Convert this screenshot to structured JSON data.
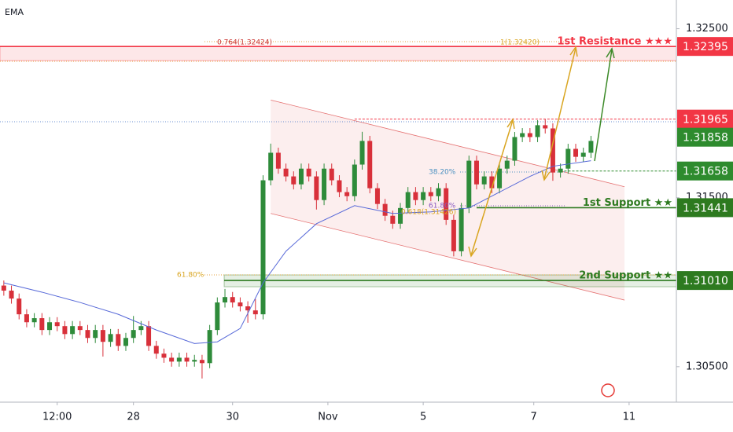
{
  "chart_data": {
    "type": "candlestick",
    "indicator": "EMA",
    "xlim": [
      -0.5,
      88.2
    ],
    "ylim": [
      1.3029,
      1.3267
    ],
    "xticks": [
      {
        "value": 7,
        "label": "12:00"
      },
      {
        "value": 17,
        "label": "28"
      },
      {
        "value": 30,
        "label": "30"
      },
      {
        "value": 42.5,
        "label": "Nov"
      },
      {
        "value": 55,
        "label": "5"
      },
      {
        "value": 69.5,
        "label": "7"
      },
      {
        "value": 82,
        "label": "11"
      }
    ],
    "yticks": [
      {
        "value": 1.305,
        "label": "1.30500"
      },
      {
        "value": 1.315,
        "label": "1.31500"
      },
      {
        "value": 1.325,
        "label": "1.32500"
      }
    ],
    "grid": false,
    "up_color": "#2e8b3a",
    "down_color": "#d8303a",
    "open": [
      1.3098,
      1.3095,
      1.30903,
      1.3081,
      1.30763,
      1.30787,
      1.30717,
      1.30763,
      1.3074,
      1.30693,
      1.3074,
      1.30717,
      1.3067,
      1.30717,
      1.30647,
      1.30693,
      1.30623,
      1.3067,
      1.30717,
      1.3074,
      1.30623,
      1.30577,
      1.30553,
      1.3053,
      1.30553,
      1.3053,
      1.3054,
      1.30521,
      1.30717,
      1.3088,
      1.30912,
      1.3088,
      1.30857,
      1.30833,
      1.3081,
      1.31603,
      1.31766,
      1.31672,
      1.31626,
      1.31579,
      1.31672,
      1.31626,
      1.31486,
      1.31672,
      1.31603,
      1.31533,
      1.31509,
      1.31696,
      1.31836,
      1.31556,
      1.31463,
      1.31393,
      1.31346,
      1.31439,
      1.31533,
      1.31486,
      1.31533,
      1.31509,
      1.31556,
      1.31369,
      1.31183,
      1.31439,
      1.31719,
      1.31579,
      1.31626,
      1.31556,
      1.31672,
      1.31719,
      1.31859,
      1.31882,
      1.31859,
      1.31929,
      1.3191,
      1.31649,
      1.31672,
      1.31789,
      1.31742,
      1.31766
    ],
    "high": [
      1.3101,
      1.3098,
      1.30933,
      1.3084,
      1.30817,
      1.30817,
      1.30793,
      1.30793,
      1.3077,
      1.3077,
      1.3077,
      1.30747,
      1.30747,
      1.30747,
      1.30723,
      1.30723,
      1.307,
      1.308,
      1.3077,
      1.3077,
      1.30653,
      1.30607,
      1.30583,
      1.30583,
      1.30583,
      1.3057,
      1.3057,
      1.30747,
      1.3091,
      1.3096,
      1.30942,
      1.3091,
      1.30887,
      1.309,
      1.31633,
      1.3182,
      1.31796,
      1.31702,
      1.31656,
      1.31702,
      1.31702,
      1.31656,
      1.31702,
      1.31702,
      1.31633,
      1.31563,
      1.31726,
      1.3189,
      1.31866,
      1.31586,
      1.31493,
      1.31423,
      1.31469,
      1.31563,
      1.31563,
      1.31563,
      1.31563,
      1.31586,
      1.31586,
      1.31399,
      1.31469,
      1.31749,
      1.31749,
      1.31656,
      1.31656,
      1.31702,
      1.31749,
      1.31889,
      1.31912,
      1.31912,
      1.31959,
      1.31965,
      1.3194,
      1.31702,
      1.31819,
      1.31819,
      1.31796,
      1.31866
    ],
    "low": [
      1.3092,
      1.30873,
      1.3078,
      1.30733,
      1.30733,
      1.30687,
      1.30687,
      1.3071,
      1.30663,
      1.30663,
      1.30687,
      1.3064,
      1.3064,
      1.3056,
      1.30617,
      1.30593,
      1.30593,
      1.3064,
      1.30687,
      1.30593,
      1.30547,
      1.30523,
      1.305,
      1.305,
      1.305,
      1.305,
      1.3043,
      1.30491,
      1.30687,
      1.3085,
      1.3085,
      1.30827,
      1.3076,
      1.3078,
      1.3078,
      1.31573,
      1.31642,
      1.31596,
      1.31549,
      1.31549,
      1.31596,
      1.3143,
      1.31456,
      1.31573,
      1.31503,
      1.31479,
      1.31479,
      1.31666,
      1.31526,
      1.31433,
      1.31363,
      1.31316,
      1.31316,
      1.31409,
      1.31456,
      1.31456,
      1.31479,
      1.31479,
      1.31339,
      1.31153,
      1.31153,
      1.31409,
      1.31549,
      1.31549,
      1.31526,
      1.31526,
      1.31642,
      1.31689,
      1.31829,
      1.31829,
      1.31829,
      1.3188,
      1.316,
      1.31619,
      1.31642,
      1.31712,
      1.31712,
      1.31736
    ],
    "close": [
      1.3095,
      1.30903,
      1.3081,
      1.30763,
      1.30787,
      1.30717,
      1.30763,
      1.3074,
      1.30693,
      1.3074,
      1.30717,
      1.3067,
      1.30717,
      1.30647,
      1.30693,
      1.30623,
      1.3067,
      1.30717,
      1.3074,
      1.30623,
      1.30577,
      1.30553,
      1.3053,
      1.30553,
      1.3053,
      1.3054,
      1.30521,
      1.30717,
      1.3088,
      1.30912,
      1.3088,
      1.30857,
      1.30833,
      1.3081,
      1.31603,
      1.31766,
      1.31672,
      1.31626,
      1.31579,
      1.31672,
      1.31626,
      1.31486,
      1.31672,
      1.31603,
      1.31533,
      1.31509,
      1.31696,
      1.31836,
      1.31556,
      1.31463,
      1.31393,
      1.31346,
      1.31439,
      1.31533,
      1.31486,
      1.31533,
      1.31509,
      1.31556,
      1.31369,
      1.31183,
      1.31439,
      1.31719,
      1.31579,
      1.31626,
      1.31556,
      1.31672,
      1.31719,
      1.31859,
      1.31882,
      1.31859,
      1.31929,
      1.3191,
      1.31649,
      1.31672,
      1.31789,
      1.31742,
      1.31766,
      1.31836
    ],
    "ema": {
      "color": "#5668d8",
      "x": [
        0,
        5,
        10,
        15,
        20,
        25,
        28,
        31,
        34,
        37,
        41,
        46,
        51,
        56,
        61,
        65,
        69,
        72,
        77
      ],
      "values": [
        1.30996,
        1.30941,
        1.3088,
        1.3081,
        1.30717,
        1.30637,
        1.30647,
        1.30726,
        1.30996,
        1.31183,
        1.31346,
        1.31453,
        1.31407,
        1.31416,
        1.31439,
        1.31533,
        1.31626,
        1.31686,
        1.31719
      ]
    },
    "channel": {
      "x": [
        35,
        81.4
      ],
      "upper": [
        1.32078,
        1.31565
      ],
      "lower": [
        1.31407,
        1.30894
      ],
      "color": "#e57373"
    },
    "levels": [
      {
        "name": "1st Resistance ★★★",
        "value": 1.32395,
        "band": [
          1.32311,
          1.32395
        ],
        "from": -0.5,
        "color": "#f23645",
        "style": "solid"
      },
      {
        "value": 1.31965,
        "from": 46,
        "color": "#f23645",
        "style": "dashed"
      },
      {
        "value": 1.31858,
        "color": "#2e8b2e",
        "style": "none"
      },
      {
        "value": 1.31658,
        "from": 73.5,
        "color": "#2e8b2e",
        "style": "dashed"
      },
      {
        "name": "1st Support ★★",
        "value": 1.31441,
        "from": 62,
        "color": "#2d7a1f",
        "style": "solid"
      },
      {
        "name": "2nd Support ★★",
        "value": 1.3101,
        "value_label": "1.31010",
        "band": [
          1.30973,
          1.31043
        ],
        "from": 28.9,
        "color": "#2d7a1f",
        "style": "solid"
      }
    ],
    "annotations": [
      "0.764(1.32424)",
      "1(1.32420)",
      "38.20%",
      "61.80%",
      "0.618(1.31426)",
      "61.80%"
    ]
  }
}
